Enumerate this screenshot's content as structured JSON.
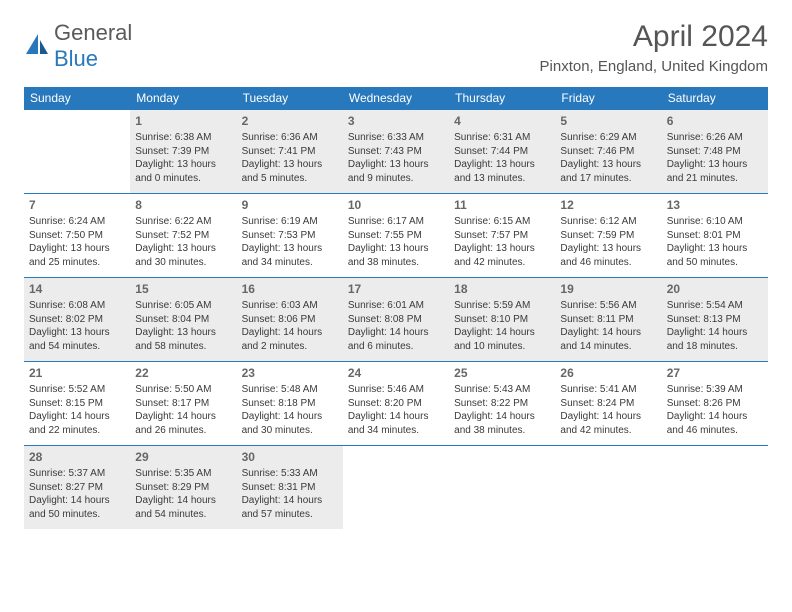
{
  "logo": {
    "part1": "General",
    "part2": "Blue"
  },
  "title": "April 2024",
  "location": "Pinxton, England, United Kingdom",
  "colors": {
    "header_bg": "#2878bd",
    "header_text": "#ffffff",
    "cell_border": "#2878bd",
    "shade_bg": "#ececec",
    "body_text": "#3a3a3a",
    "title_text": "#555555"
  },
  "weekdays": [
    "Sunday",
    "Monday",
    "Tuesday",
    "Wednesday",
    "Thursday",
    "Friday",
    "Saturday"
  ],
  "layout": {
    "cols": 7,
    "rows": 5,
    "leading_blanks": 1,
    "trailing_blanks": 4
  },
  "days": [
    {
      "n": 1,
      "sr": "6:38 AM",
      "ss": "7:39 PM",
      "dl": "13 hours and 0 minutes."
    },
    {
      "n": 2,
      "sr": "6:36 AM",
      "ss": "7:41 PM",
      "dl": "13 hours and 5 minutes."
    },
    {
      "n": 3,
      "sr": "6:33 AM",
      "ss": "7:43 PM",
      "dl": "13 hours and 9 minutes."
    },
    {
      "n": 4,
      "sr": "6:31 AM",
      "ss": "7:44 PM",
      "dl": "13 hours and 13 minutes."
    },
    {
      "n": 5,
      "sr": "6:29 AM",
      "ss": "7:46 PM",
      "dl": "13 hours and 17 minutes."
    },
    {
      "n": 6,
      "sr": "6:26 AM",
      "ss": "7:48 PM",
      "dl": "13 hours and 21 minutes."
    },
    {
      "n": 7,
      "sr": "6:24 AM",
      "ss": "7:50 PM",
      "dl": "13 hours and 25 minutes."
    },
    {
      "n": 8,
      "sr": "6:22 AM",
      "ss": "7:52 PM",
      "dl": "13 hours and 30 minutes."
    },
    {
      "n": 9,
      "sr": "6:19 AM",
      "ss": "7:53 PM",
      "dl": "13 hours and 34 minutes."
    },
    {
      "n": 10,
      "sr": "6:17 AM",
      "ss": "7:55 PM",
      "dl": "13 hours and 38 minutes."
    },
    {
      "n": 11,
      "sr": "6:15 AM",
      "ss": "7:57 PM",
      "dl": "13 hours and 42 minutes."
    },
    {
      "n": 12,
      "sr": "6:12 AM",
      "ss": "7:59 PM",
      "dl": "13 hours and 46 minutes."
    },
    {
      "n": 13,
      "sr": "6:10 AM",
      "ss": "8:01 PM",
      "dl": "13 hours and 50 minutes."
    },
    {
      "n": 14,
      "sr": "6:08 AM",
      "ss": "8:02 PM",
      "dl": "13 hours and 54 minutes."
    },
    {
      "n": 15,
      "sr": "6:05 AM",
      "ss": "8:04 PM",
      "dl": "13 hours and 58 minutes."
    },
    {
      "n": 16,
      "sr": "6:03 AM",
      "ss": "8:06 PM",
      "dl": "14 hours and 2 minutes."
    },
    {
      "n": 17,
      "sr": "6:01 AM",
      "ss": "8:08 PM",
      "dl": "14 hours and 6 minutes."
    },
    {
      "n": 18,
      "sr": "5:59 AM",
      "ss": "8:10 PM",
      "dl": "14 hours and 10 minutes."
    },
    {
      "n": 19,
      "sr": "5:56 AM",
      "ss": "8:11 PM",
      "dl": "14 hours and 14 minutes."
    },
    {
      "n": 20,
      "sr": "5:54 AM",
      "ss": "8:13 PM",
      "dl": "14 hours and 18 minutes."
    },
    {
      "n": 21,
      "sr": "5:52 AM",
      "ss": "8:15 PM",
      "dl": "14 hours and 22 minutes."
    },
    {
      "n": 22,
      "sr": "5:50 AM",
      "ss": "8:17 PM",
      "dl": "14 hours and 26 minutes."
    },
    {
      "n": 23,
      "sr": "5:48 AM",
      "ss": "8:18 PM",
      "dl": "14 hours and 30 minutes."
    },
    {
      "n": 24,
      "sr": "5:46 AM",
      "ss": "8:20 PM",
      "dl": "14 hours and 34 minutes."
    },
    {
      "n": 25,
      "sr": "5:43 AM",
      "ss": "8:22 PM",
      "dl": "14 hours and 38 minutes."
    },
    {
      "n": 26,
      "sr": "5:41 AM",
      "ss": "8:24 PM",
      "dl": "14 hours and 42 minutes."
    },
    {
      "n": 27,
      "sr": "5:39 AM",
      "ss": "8:26 PM",
      "dl": "14 hours and 46 minutes."
    },
    {
      "n": 28,
      "sr": "5:37 AM",
      "ss": "8:27 PM",
      "dl": "14 hours and 50 minutes."
    },
    {
      "n": 29,
      "sr": "5:35 AM",
      "ss": "8:29 PM",
      "dl": "14 hours and 54 minutes."
    },
    {
      "n": 30,
      "sr": "5:33 AM",
      "ss": "8:31 PM",
      "dl": "14 hours and 57 minutes."
    }
  ],
  "labels": {
    "sunrise": "Sunrise:",
    "sunset": "Sunset:",
    "daylight": "Daylight:"
  },
  "shaded_days": [
    1,
    2,
    3,
    4,
    5,
    6,
    14,
    15,
    16,
    17,
    18,
    19,
    20,
    28,
    29,
    30
  ]
}
